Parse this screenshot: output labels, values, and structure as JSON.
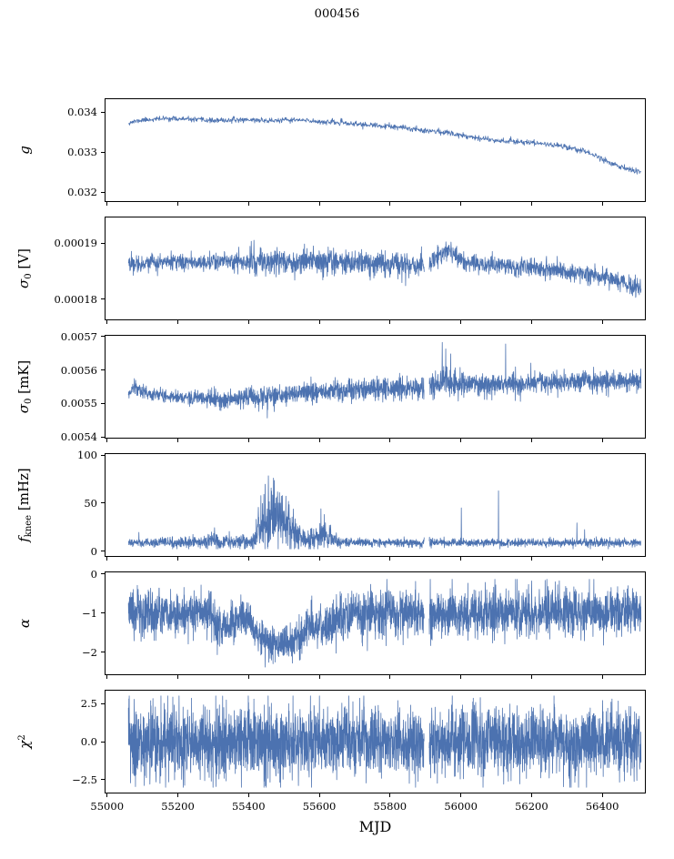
{
  "title": "000456",
  "line_color": "#4c72b0",
  "chart_data": {
    "type": "line",
    "description": "Six stacked time-series panels sharing an MJD x-axis; noisy data drawn from trend and noise-sigma control points.",
    "x_axis": {
      "label": "MJD",
      "xlim": [
        54993,
        56523
      ],
      "data_range": [
        55058,
        56512
      ],
      "ticks": [
        {
          "v": 55000,
          "label": "55000"
        },
        {
          "v": 55200,
          "label": "55200"
        },
        {
          "v": 55400,
          "label": "55400"
        },
        {
          "v": 55600,
          "label": "55600"
        },
        {
          "v": 55800,
          "label": "55800"
        },
        {
          "v": 56000,
          "label": "56000"
        },
        {
          "v": 56200,
          "label": "56200"
        },
        {
          "v": 56400,
          "label": "56400"
        }
      ]
    },
    "panels": [
      {
        "name": "g",
        "ylabel_parts": [
          {
            "t": "g",
            "s": "math"
          }
        ],
        "ylim": [
          0.03175,
          0.03435
        ],
        "yticks": [
          {
            "v": 0.034,
            "label": "0.034"
          },
          {
            "v": 0.033,
            "label": "0.033"
          },
          {
            "v": 0.032,
            "label": "0.032"
          }
        ],
        "seed": 11,
        "npoints": 1300,
        "trend": [
          [
            55058,
            0.03375
          ],
          [
            55100,
            0.03382
          ],
          [
            55170,
            0.03386
          ],
          [
            55240,
            0.03383
          ],
          [
            55310,
            0.0338
          ],
          [
            55390,
            0.03383
          ],
          [
            55460,
            0.0338
          ],
          [
            55530,
            0.03382
          ],
          [
            55600,
            0.03378
          ],
          [
            55670,
            0.03374
          ],
          [
            55740,
            0.03369
          ],
          [
            55810,
            0.03364
          ],
          [
            55880,
            0.03358
          ],
          [
            55950,
            0.03351
          ],
          [
            56020,
            0.03341
          ],
          [
            56090,
            0.03331
          ],
          [
            56160,
            0.03327
          ],
          [
            56230,
            0.03322
          ],
          [
            56300,
            0.03314
          ],
          [
            56360,
            0.033
          ],
          [
            56420,
            0.03275
          ],
          [
            56470,
            0.03257
          ],
          [
            56512,
            0.03248
          ]
        ],
        "noise": [
          [
            55058,
            3e-05
          ],
          [
            56512,
            4e-05
          ]
        ],
        "spikes": [],
        "gaps": [],
        "clip": [
          0.032,
          0.0342
        ]
      },
      {
        "name": "sigma0-V",
        "ylabel_parts": [
          {
            "t": "σ",
            "s": "math"
          },
          {
            "t": "0",
            "s": "sub"
          },
          {
            "t": " [V]",
            "s": "unit"
          }
        ],
        "ylim": [
          0.0001762,
          0.0001948
        ],
        "yticks": [
          {
            "v": 0.00019,
            "label": "0.00019"
          },
          {
            "v": 0.00018,
            "label": "0.00018"
          }
        ],
        "seed": 22,
        "npoints": 2100,
        "trend": [
          [
            55058,
            0.0001864
          ],
          [
            55150,
            0.0001866
          ],
          [
            55300,
            0.0001867
          ],
          [
            55450,
            0.0001868
          ],
          [
            55600,
            0.0001867
          ],
          [
            55750,
            0.0001864
          ],
          [
            55880,
            0.0001861
          ],
          [
            55920,
            0.0001865
          ],
          [
            55945,
            0.0001884
          ],
          [
            55965,
            0.0001889
          ],
          [
            55990,
            0.0001875
          ],
          [
            56020,
            0.0001866
          ],
          [
            56080,
            0.0001861
          ],
          [
            56160,
            0.0001858
          ],
          [
            56240,
            0.0001853
          ],
          [
            56320,
            0.0001848
          ],
          [
            56400,
            0.000184
          ],
          [
            56460,
            0.000183
          ],
          [
            56512,
            0.0001817
          ]
        ],
        "noise": [
          [
            55058,
            7e-07
          ],
          [
            55350,
            8e-07
          ],
          [
            55420,
            1.2e-06
          ],
          [
            55900,
            1.1e-06
          ],
          [
            56000,
            9e-07
          ],
          [
            56512,
            8e-07
          ]
        ],
        "spikes": [],
        "gaps": [
          [
            55897,
            55911
          ]
        ],
        "clip": null
      },
      {
        "name": "sigma0-mK",
        "ylabel_parts": [
          {
            "t": "σ",
            "s": "math"
          },
          {
            "t": "0",
            "s": "sub"
          },
          {
            "t": " [mK]",
            "s": "unit"
          }
        ],
        "ylim": [
          0.005395,
          0.005705
        ],
        "yticks": [
          {
            "v": 0.0057,
            "label": "0.0057"
          },
          {
            "v": 0.0056,
            "label": "0.0056"
          },
          {
            "v": 0.0055,
            "label": "0.0055"
          },
          {
            "v": 0.0054,
            "label": "0.0054"
          }
        ],
        "seed": 33,
        "npoints": 2500,
        "trend": [
          [
            55058,
            0.005525
          ],
          [
            55075,
            0.00555
          ],
          [
            55095,
            0.005535
          ],
          [
            55150,
            0.005522
          ],
          [
            55220,
            0.005518
          ],
          [
            55290,
            0.005512
          ],
          [
            55340,
            0.005508
          ],
          [
            55400,
            0.00552
          ],
          [
            55480,
            0.005522
          ],
          [
            55560,
            0.00553
          ],
          [
            55640,
            0.005538
          ],
          [
            55720,
            0.005543
          ],
          [
            55800,
            0.005548
          ],
          [
            55880,
            0.005548
          ],
          [
            55930,
            0.005555
          ],
          [
            55955,
            0.00557
          ],
          [
            55980,
            0.005555
          ],
          [
            56060,
            0.005555
          ],
          [
            56140,
            0.005558
          ],
          [
            56220,
            0.005562
          ],
          [
            56300,
            0.005565
          ],
          [
            56380,
            0.005565
          ],
          [
            56450,
            0.005568
          ],
          [
            56512,
            0.00557
          ]
        ],
        "noise": [
          [
            55058,
            9e-06
          ],
          [
            55200,
            1e-05
          ],
          [
            55320,
            1.3e-05
          ],
          [
            55420,
            1.5e-05
          ],
          [
            55560,
            1.5e-05
          ],
          [
            55700,
            1.6e-05
          ],
          [
            55850,
            1.6e-05
          ],
          [
            55940,
            2.2e-05
          ],
          [
            56040,
            1.6e-05
          ],
          [
            56200,
            1.6e-05
          ],
          [
            56360,
            1.6e-05
          ],
          [
            56512,
            1.7e-05
          ]
        ],
        "spikes": [
          {
            "x": 55948,
            "y": 0.005685
          },
          {
            "x": 55958,
            "y": 0.005665
          },
          {
            "x": 55972,
            "y": 0.00565
          },
          {
            "x": 56128,
            "y": 0.00568
          },
          {
            "x": 55452,
            "y": 0.005455
          },
          {
            "x": 55075,
            "y": 0.005575
          }
        ],
        "gaps": [
          [
            55897,
            55911
          ]
        ],
        "clip": null
      },
      {
        "name": "fknee",
        "ylabel_parts": [
          {
            "t": "f",
            "s": "math"
          },
          {
            "t": "knee",
            "s": "sub"
          },
          {
            "t": " [mHz]",
            "s": "unit"
          }
        ],
        "ylim": [
          -6,
          102
        ],
        "yticks": [
          {
            "v": 100,
            "label": "100"
          },
          {
            "v": 50,
            "label": "50"
          },
          {
            "v": 0,
            "label": "0"
          }
        ],
        "seed": 44,
        "npoints": 2400,
        "trend": [
          [
            55058,
            8
          ],
          [
            55270,
            8
          ],
          [
            55300,
            11
          ],
          [
            55330,
            9
          ],
          [
            55360,
            8
          ],
          [
            55410,
            9
          ],
          [
            55430,
            22
          ],
          [
            55450,
            30
          ],
          [
            55470,
            33
          ],
          [
            55490,
            30
          ],
          [
            55510,
            26
          ],
          [
            55530,
            20
          ],
          [
            55550,
            13
          ],
          [
            55570,
            10
          ],
          [
            55590,
            14
          ],
          [
            55610,
            16
          ],
          [
            55630,
            12
          ],
          [
            55660,
            9
          ],
          [
            55700,
            8
          ],
          [
            56512,
            8
          ]
        ],
        "noise": [
          [
            55058,
            2.2
          ],
          [
            55270,
            2.8
          ],
          [
            55300,
            5
          ],
          [
            55330,
            3.5
          ],
          [
            55410,
            4
          ],
          [
            55440,
            14
          ],
          [
            55470,
            16
          ],
          [
            55500,
            13
          ],
          [
            55530,
            9
          ],
          [
            55560,
            5
          ],
          [
            55590,
            7
          ],
          [
            55620,
            6
          ],
          [
            55660,
            3
          ],
          [
            55700,
            2.2
          ],
          [
            56512,
            2.2
          ]
        ],
        "spikes": [
          {
            "x": 55434,
            "y": 58
          },
          {
            "x": 55446,
            "y": 70
          },
          {
            "x": 55455,
            "y": 79
          },
          {
            "x": 55463,
            "y": 66
          },
          {
            "x": 55472,
            "y": 74
          },
          {
            "x": 55481,
            "y": 62
          },
          {
            "x": 55495,
            "y": 58
          },
          {
            "x": 55512,
            "y": 52
          },
          {
            "x": 55088,
            "y": 19
          },
          {
            "x": 55302,
            "y": 24
          },
          {
            "x": 55344,
            "y": 20
          },
          {
            "x": 55604,
            "y": 44
          },
          {
            "x": 55614,
            "y": 38
          },
          {
            "x": 56002,
            "y": 45
          },
          {
            "x": 56108,
            "y": 63
          },
          {
            "x": 56330,
            "y": 29
          },
          {
            "x": 56352,
            "y": 22
          }
        ],
        "gaps": [
          [
            55897,
            55911
          ]
        ],
        "clip": [
          1.5,
          100
        ]
      },
      {
        "name": "alpha",
        "ylabel_parts": [
          {
            "t": "α",
            "s": "math"
          }
        ],
        "ylim": [
          -2.58,
          0.06
        ],
        "yticks": [
          {
            "v": 0,
            "label": "0"
          },
          {
            "v": -1,
            "label": "−1"
          },
          {
            "v": -2,
            "label": "−2"
          }
        ],
        "seed": 55,
        "npoints": 3000,
        "trend": [
          [
            55058,
            -1.0
          ],
          [
            55280,
            -1.0
          ],
          [
            55305,
            -1.25
          ],
          [
            55330,
            -1.4
          ],
          [
            55355,
            -1.25
          ],
          [
            55375,
            -1.1
          ],
          [
            55395,
            -1.15
          ],
          [
            55415,
            -1.45
          ],
          [
            55435,
            -1.65
          ],
          [
            55460,
            -1.75
          ],
          [
            55490,
            -1.78
          ],
          [
            55520,
            -1.75
          ],
          [
            55545,
            -1.65
          ],
          [
            55565,
            -1.45
          ],
          [
            55585,
            -1.25
          ],
          [
            55605,
            -1.4
          ],
          [
            55625,
            -1.35
          ],
          [
            55650,
            -1.15
          ],
          [
            55675,
            -1.05
          ],
          [
            55700,
            -1.0
          ],
          [
            56512,
            -1.0
          ]
        ],
        "noise": [
          [
            55058,
            0.3
          ],
          [
            55290,
            0.28
          ],
          [
            55330,
            0.25
          ],
          [
            55420,
            0.22
          ],
          [
            55520,
            0.22
          ],
          [
            55580,
            0.26
          ],
          [
            55700,
            0.3
          ],
          [
            56512,
            0.3
          ]
        ],
        "spikes": [],
        "gaps": [
          [
            55897,
            55911
          ]
        ],
        "clip": [
          -2.45,
          -0.12
        ]
      },
      {
        "name": "chi2",
        "ylabel_parts": [
          {
            "t": "χ",
            "s": "math"
          },
          {
            "t": "2",
            "s": "sup"
          }
        ],
        "ylim": [
          -3.4,
          3.4
        ],
        "yticks": [
          {
            "v": 2.5,
            "label": "2.5"
          },
          {
            "v": 0,
            "label": "0.0"
          },
          {
            "v": -2.5,
            "label": "−2.5"
          }
        ],
        "seed": 66,
        "npoints": 3200,
        "trend": [
          [
            55058,
            0
          ],
          [
            56512,
            0
          ]
        ],
        "noise": [
          [
            55058,
            1.15
          ],
          [
            56512,
            1.15
          ]
        ],
        "spikes": [],
        "gaps": [
          [
            55897,
            55911
          ]
        ],
        "clip": [
          -3.05,
          3.05
        ]
      }
    ]
  }
}
